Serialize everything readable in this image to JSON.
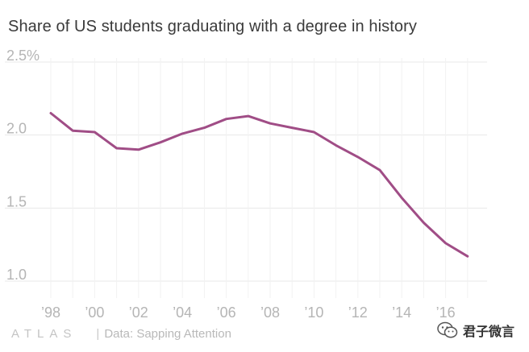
{
  "title": "Share of US students graduating with a degree in history",
  "footer": {
    "brand": "ATLAS",
    "source": "Data: Sapping Attention"
  },
  "watermark": {
    "text": "君子微言",
    "icon": "wechat-icon"
  },
  "colors": {
    "line": "#a04d86",
    "grid": "#e8e8e8",
    "tick_text": "#b5b5b5",
    "title_text": "#3a3a3a"
  },
  "chart_data": {
    "type": "line",
    "title": "Share of US students graduating with a degree in history",
    "xlabel": "",
    "ylabel": "",
    "x": [
      1998,
      1999,
      2000,
      2001,
      2002,
      2003,
      2004,
      2005,
      2006,
      2007,
      2008,
      2009,
      2010,
      2011,
      2012,
      2013,
      2014,
      2015,
      2016,
      2017
    ],
    "series": [
      {
        "values": [
          2.15,
          2.03,
          2.02,
          1.91,
          1.9,
          1.95,
          2.01,
          2.05,
          2.11,
          2.13,
          2.08,
          2.05,
          2.02,
          1.93,
          1.85,
          1.76,
          1.57,
          1.4,
          1.26,
          1.17
        ]
      }
    ],
    "ylim": [
      0.9,
      2.55
    ],
    "yticks": [
      1.0,
      1.5,
      2.0,
      2.5
    ],
    "ytick_labels": [
      "1.0",
      "1.5",
      "2.0",
      "2.5%"
    ],
    "xticks": [
      1998,
      2000,
      2002,
      2004,
      2006,
      2008,
      2010,
      2012,
      2014,
      2016
    ],
    "xtick_labels": [
      "’98",
      "’00",
      "’02",
      "’04",
      "’06",
      "’08",
      "’10",
      "’12",
      "’14",
      "’16"
    ],
    "grid": true
  }
}
